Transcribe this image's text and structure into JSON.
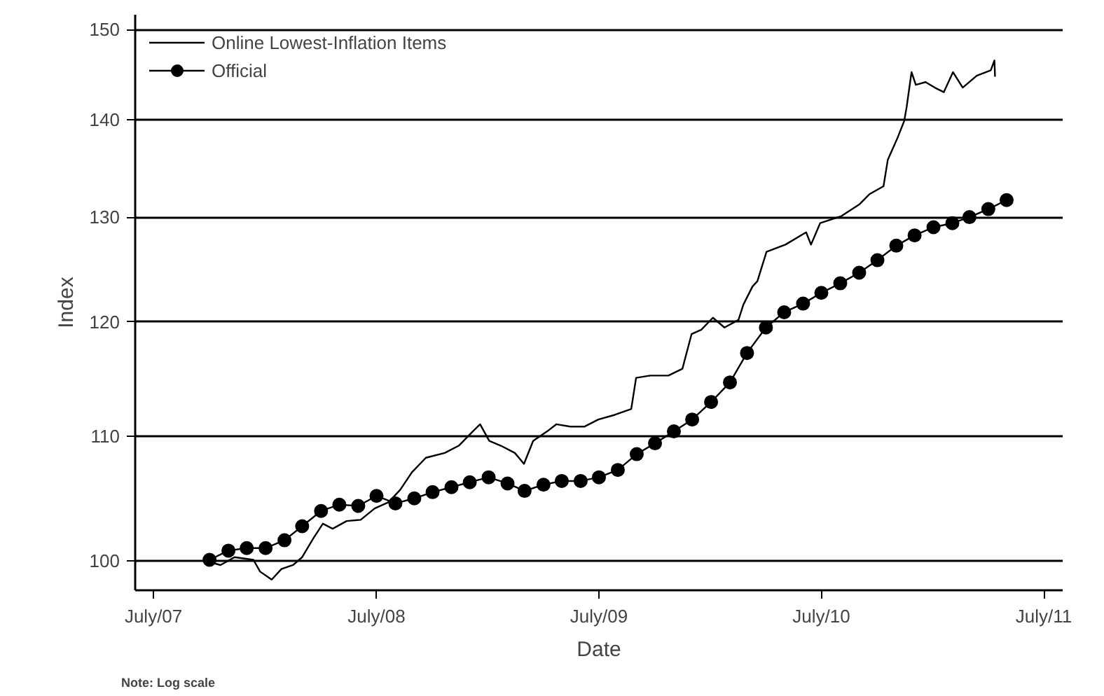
{
  "chart_data": {
    "type": "line",
    "xlabel": "Date",
    "ylabel": "Index",
    "annotations": [
      "Note: Log scale"
    ],
    "log": "y",
    "grid": "y",
    "legend": "top left",
    "xlim": [
      "2007-06-01",
      "2011-08-01"
    ],
    "xticks": [
      {
        "value": "2007-07-01",
        "label": "July/07"
      },
      {
        "value": "2008-07-01",
        "label": "July/08"
      },
      {
        "value": "2009-07-01",
        "label": "July/09"
      },
      {
        "value": "2010-07-01",
        "label": "July/10"
      },
      {
        "value": "2011-07-01",
        "label": "July/11"
      }
    ],
    "ylim": [
      97.8,
      151.7
    ],
    "yticks": [
      100,
      110,
      120,
      130,
      140,
      150
    ],
    "series": [
      {
        "name": "Online Lowest-Inflation Items",
        "color": "#000000",
        "marker": "none",
        "x": [
          "2007-09-26",
          "2007-10-19",
          "2007-11-11",
          "2007-12-12",
          "2007-12-23",
          "2008-01-11",
          "2008-01-27",
          "2008-02-15",
          "2008-03-01",
          "2008-03-20",
          "2008-04-04",
          "2008-04-20",
          "2008-05-13",
          "2008-06-05",
          "2008-06-28",
          "2008-07-21",
          "2008-08-09",
          "2008-08-28",
          "2008-09-20",
          "2008-10-21",
          "2008-11-13",
          "2008-12-06",
          "2008-12-18",
          "2009-01-02",
          "2009-01-21",
          "2009-02-13",
          "2009-02-28",
          "2009-03-15",
          "2009-04-07",
          "2009-04-22",
          "2009-05-15",
          "2009-06-07",
          "2009-06-30",
          "2009-07-27",
          "2009-08-23",
          "2009-08-31",
          "2009-09-23",
          "2009-10-23",
          "2009-11-15",
          "2009-11-30",
          "2009-12-16",
          "2010-01-04",
          "2010-01-23",
          "2010-02-15",
          "2010-02-23",
          "2010-03-10",
          "2010-03-18",
          "2010-04-02",
          "2010-05-03",
          "2010-06-06",
          "2010-06-14",
          "2010-06-29",
          "2010-08-03",
          "2010-09-02",
          "2010-09-18",
          "2010-10-11",
          "2010-10-18",
          "2010-11-03",
          "2010-11-14",
          "2010-11-18",
          "2010-11-26",
          "2010-12-03",
          "2010-12-19",
          "2011-01-03",
          "2011-01-18",
          "2011-02-02",
          "2011-02-18",
          "2011-03-13",
          "2011-04-05",
          "2011-04-11",
          "2011-04-12"
        ],
        "values": [
          100.0,
          99.7,
          100.3,
          100.1,
          99.2,
          98.6,
          99.4,
          99.7,
          100.3,
          101.8,
          102.9,
          102.5,
          103.1,
          103.2,
          104.1,
          104.6,
          105.6,
          107.0,
          108.2,
          108.6,
          109.2,
          110.4,
          111.0,
          109.6,
          109.2,
          108.6,
          107.7,
          109.6,
          110.4,
          111.0,
          110.8,
          110.8,
          111.4,
          111.8,
          112.3,
          115.0,
          115.2,
          115.2,
          115.8,
          118.9,
          119.3,
          120.4,
          119.5,
          120.2,
          121.6,
          123.3,
          123.8,
          126.6,
          127.3,
          128.5,
          127.3,
          129.4,
          130.1,
          131.3,
          132.3,
          133.1,
          135.8,
          138.1,
          139.9,
          141.4,
          145.2,
          143.8,
          144.1,
          143.5,
          143.0,
          145.2,
          143.5,
          144.8,
          145.4,
          146.5,
          144.7
        ]
      },
      {
        "name": "Official",
        "color": "#000000",
        "marker": "circle",
        "x": [
          "2007-10",
          "2007-11",
          "2007-12",
          "2008-01",
          "2008-02",
          "2008-03",
          "2008-04",
          "2008-05",
          "2008-06",
          "2008-07",
          "2008-08",
          "2008-09",
          "2008-10",
          "2008-11",
          "2008-12",
          "2009-01",
          "2009-02",
          "2009-03",
          "2009-04",
          "2009-05",
          "2009-06",
          "2009-07",
          "2009-08",
          "2009-09",
          "2009-10",
          "2009-11",
          "2009-12",
          "2010-01",
          "2010-02",
          "2010-03",
          "2010-04",
          "2010-05",
          "2010-06",
          "2010-07",
          "2010-08",
          "2010-09",
          "2010-10",
          "2010-11",
          "2010-12",
          "2011-01",
          "2011-02",
          "2011-03",
          "2011-04",
          "2011-05"
        ],
        "values": [
          100.1,
          100.8,
          101.0,
          101.0,
          101.6,
          102.7,
          103.9,
          104.4,
          104.3,
          105.1,
          104.5,
          104.9,
          105.4,
          105.8,
          106.2,
          106.6,
          106.1,
          105.5,
          106.0,
          106.3,
          106.3,
          106.6,
          107.2,
          108.5,
          109.4,
          110.4,
          111.4,
          112.9,
          114.6,
          117.2,
          119.5,
          120.9,
          121.7,
          122.7,
          123.6,
          124.6,
          125.8,
          127.2,
          128.2,
          129.0,
          129.4,
          130.0,
          130.8,
          131.7
        ]
      }
    ]
  }
}
